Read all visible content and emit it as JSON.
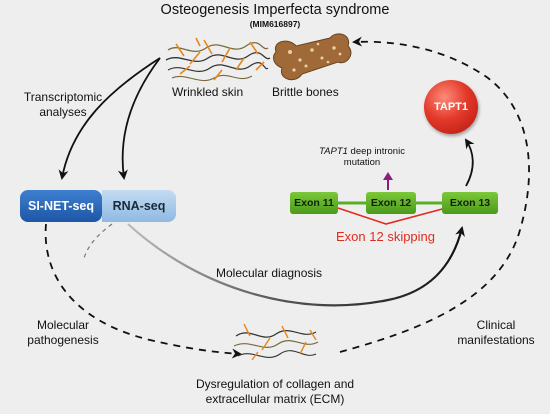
{
  "title": "Osteogenesis Imperfecta syndrome",
  "subtitle": "(MIM616897)",
  "phenotypes": {
    "skin": "Wrinkled skin",
    "bones": "Brittle bones"
  },
  "labels": {
    "transcriptomic_line1": "Transcriptomic",
    "transcriptomic_line2": "analyses",
    "molecular_diagnosis": "Molecular diagnosis",
    "molecular_pathogenesis_line1": "Molecular",
    "molecular_pathogenesis_line2": "pathogenesis",
    "clinical_line1": "Clinical",
    "clinical_line2": "manifestations"
  },
  "methods": {
    "sinet": "SI-NET-seq",
    "rnaseq": "RNA-seq"
  },
  "gene": {
    "name": "TAPT1",
    "mutation_gene": "TAPT1",
    "mutation_line1_rest": " deep intronic",
    "mutation_line2": "mutation",
    "exons": [
      "Exon 11",
      "Exon 12",
      "Exon 13"
    ],
    "skipping": "Exon 12 skipping"
  },
  "outcome": {
    "line1": "Dysregulation of collagen and",
    "line2": "extracellular matrix (ECM)"
  },
  "colors": {
    "exon_green": "#5aad25",
    "skip_red": "#e02b20",
    "sinet_blue": "#1d56a6",
    "rnaseq_blue": "#a6c9ea",
    "tapt1_red": "#d8281a"
  }
}
